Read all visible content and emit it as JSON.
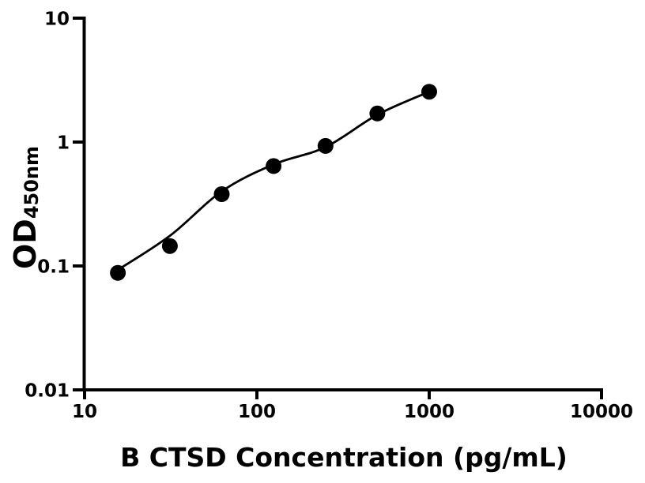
{
  "figure": {
    "background_color": "#ffffff",
    "foreground_color": "#000000",
    "x_axis_title": "B CTSD Concentration (pg/mL)",
    "y_axis_label_main": "OD",
    "y_axis_label_sub": "450nm"
  },
  "chart_data": {
    "type": "scatter",
    "title": "",
    "xlabel": "B CTSD Concentration (pg/mL)",
    "ylabel": "OD450nm",
    "x_scale": "log",
    "y_scale": "log",
    "xlim": [
      10,
      10000
    ],
    "ylim": [
      0.01,
      10
    ],
    "x_ticks": [
      {
        "value": 10,
        "label": "10"
      },
      {
        "value": 100,
        "label": "100"
      },
      {
        "value": 1000,
        "label": "1000"
      },
      {
        "value": 10000,
        "label": "10000"
      }
    ],
    "y_ticks": [
      {
        "value": 0.01,
        "label": "0.01"
      },
      {
        "value": 0.1,
        "label": "0.1"
      },
      {
        "value": 1,
        "label": "1"
      },
      {
        "value": 10,
        "label": "10"
      }
    ],
    "grid": false,
    "legend": false,
    "series": [
      {
        "name": "standard-points",
        "role": "markers",
        "marker": "filled-circle",
        "color": "#000000",
        "x": [
          15.6,
          31.25,
          62.5,
          125,
          250,
          500,
          1000
        ],
        "y": [
          0.088,
          0.145,
          0.38,
          0.64,
          0.93,
          1.7,
          2.55
        ]
      },
      {
        "name": "fit-curve",
        "role": "line",
        "color": "#000000",
        "x": [
          15.6,
          31.25,
          62.5,
          125,
          250,
          500,
          1000
        ],
        "y": [
          0.093,
          0.175,
          0.4,
          0.66,
          0.91,
          1.66,
          2.55
        ]
      }
    ]
  }
}
